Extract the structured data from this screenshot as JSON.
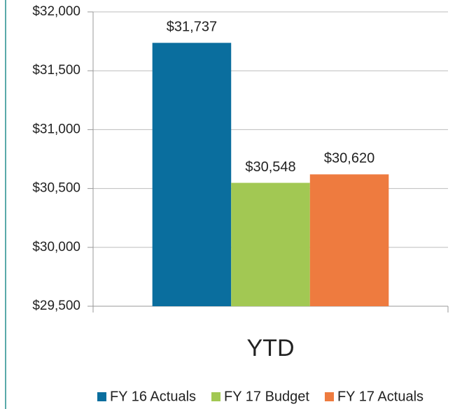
{
  "chart_data": {
    "type": "bar",
    "categories": [
      "YTD"
    ],
    "series": [
      {
        "name": "FY 16 Actuals",
        "color": "#0a6e9e",
        "values": [
          31737
        ],
        "value_labels": [
          "$31,737"
        ]
      },
      {
        "name": "FY 17 Budget",
        "color": "#a2c853",
        "values": [
          30548
        ],
        "value_labels": [
          "$30,548"
        ]
      },
      {
        "name": "FY 17 Actuals",
        "color": "#ee7b3f",
        "values": [
          30620
        ],
        "value_labels": [
          "$30,620"
        ]
      }
    ],
    "ylim": [
      29500,
      32000
    ],
    "yticks": [
      {
        "value": 29500,
        "label": "$29,500"
      },
      {
        "value": 30000,
        "label": "$30,000"
      },
      {
        "value": 30500,
        "label": "$30,500"
      },
      {
        "value": 31000,
        "label": "$31,000"
      },
      {
        "value": 31500,
        "label": "$31,500"
      },
      {
        "value": 32000,
        "label": "$32,000"
      }
    ],
    "grid": true,
    "legend": "bottom"
  }
}
